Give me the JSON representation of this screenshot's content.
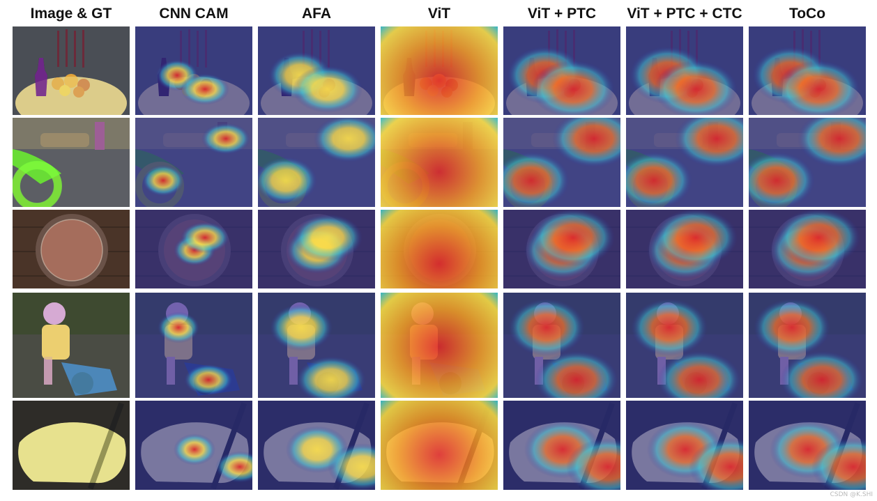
{
  "headers": [
    "Image & GT",
    "CNN CAM",
    "AFA",
    "ViT",
    "ViT + PTC",
    "ViT + PTC + CTC",
    "ToCo"
  ],
  "row_labels": [
    "row-cake-bottle",
    "row-inflatable-crocodile",
    "row-plate",
    "row-child-bike",
    "row-swan"
  ],
  "watermark": "CSDN @K.SHI",
  "colors": {
    "heat_low": "#2b2f9e",
    "heat_mid": "#3ec9d6",
    "heat_high": "#ffe14a",
    "heat_peak": "#e0262a",
    "gt_overlay": "#f3e58a"
  }
}
